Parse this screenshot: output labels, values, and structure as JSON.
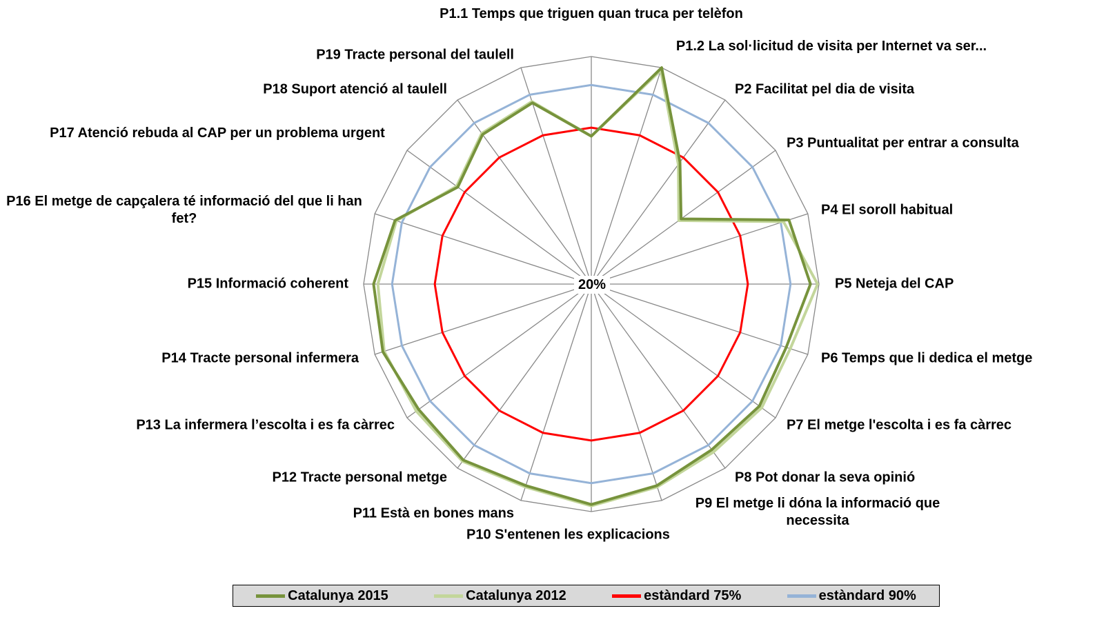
{
  "chart_data": {
    "type": "radar",
    "categories": [
      "P1.1 Temps que triguen quan truca per telèfon",
      "P1.2 La sol·licitud de visita per Internet va ser...",
      "P2 Facilitat pel dia de visita",
      "P3 Puntualitat per entrar a consulta",
      "P4 El soroll habitual",
      "P5 Neteja del CAP",
      "P6 Temps que li dedica el metge",
      "P7 El metge l'escolta i es fa càrrec",
      "P8 Pot donar la seva opinió",
      "P9 El metge li dóna la informació que necessita",
      "P10 S'entenen les explicacions",
      "P11 Està en bones mans",
      "P12 Tracte personal metge",
      "P13 La infermera l’escolta i es fa càrrec",
      "P14 Tracte personal infermera",
      "P15 Informació coherent",
      "P16 El metge de capçalera té informació del que li han fet?",
      "P17 Atenció rebuda al CAP per un problema urgent",
      "P18 Suport atenció al taulell",
      "P19 Tracte personal del taulell"
    ],
    "series": [
      {
        "name": "Catalunya 2015",
        "color": "#77933c",
        "values": [
          72,
          100,
          73,
          59,
          93,
          97,
          92,
          93,
          92,
          94.5,
          97.5,
          94.5,
          96.5,
          95,
          97,
          96.5,
          92.5,
          78,
          85,
          87
        ]
      },
      {
        "name": "Catalunya 2012",
        "color": "#c3d69b",
        "values": [
          72,
          99,
          72,
          58,
          91,
          99.5,
          93.5,
          94,
          93,
          95,
          98,
          95,
          97,
          96,
          96.5,
          95,
          92,
          78.5,
          85.5,
          87.5
        ]
      },
      {
        "name": "estàndard 75%",
        "color": "#ff0000",
        "values": [
          75,
          75,
          75,
          75,
          75,
          75,
          75,
          75,
          75,
          75,
          75,
          75,
          75,
          75,
          75,
          75,
          75,
          75,
          75,
          75
        ]
      },
      {
        "name": "estàndard 90%",
        "color": "#95b3d7",
        "values": [
          90,
          90,
          90,
          90,
          90,
          90,
          90,
          90,
          90,
          90,
          90,
          90,
          90,
          90,
          90,
          90,
          90,
          90,
          90,
          90
        ]
      }
    ],
    "ylim": [
      20,
      100
    ],
    "yticks": [
      {
        "value": 20,
        "label": "20%"
      }
    ],
    "legend": "bottom"
  }
}
